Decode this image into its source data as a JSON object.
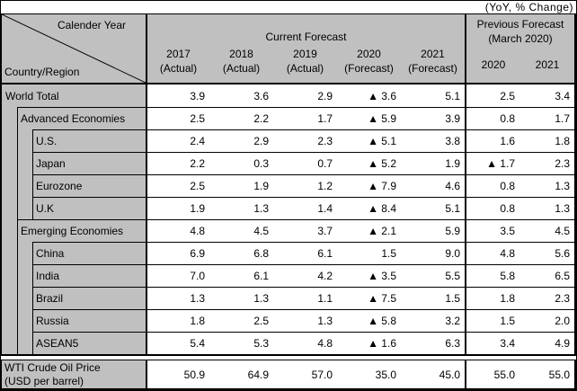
{
  "caption": "(YoY, % Change)",
  "colors": {
    "header_bg": "#c0c0c0",
    "border": "#000000",
    "background": "#ffffff",
    "text": "#000000"
  },
  "negative_marker": "▲",
  "header": {
    "corner_top": "Calender Year",
    "corner_bottom": "Country/Region",
    "current": {
      "title": "Current Forecast",
      "years": [
        {
          "year": "2017",
          "status": "(Actual)"
        },
        {
          "year": "2018",
          "status": "(Actual)"
        },
        {
          "year": "2019",
          "status": "(Actual)"
        },
        {
          "year": "2020",
          "status": "(Forecast)"
        },
        {
          "year": "2021",
          "status": "(Forecast)"
        }
      ]
    },
    "previous": {
      "title": "Previous Forecast",
      "subtitle": "(March 2020)",
      "years": [
        "2020",
        "2021"
      ]
    }
  },
  "rows": [
    {
      "label": "World Total",
      "indent": 0,
      "values": [
        "3.9",
        "3.6",
        "2.9",
        "▲ 3.6",
        "5.1",
        "2.5",
        "3.4"
      ]
    },
    {
      "label": "Advanced Economies",
      "indent": 1,
      "values": [
        "2.5",
        "2.2",
        "1.7",
        "▲ 5.9",
        "3.9",
        "0.8",
        "1.7"
      ]
    },
    {
      "label": "U.S.",
      "indent": 2,
      "values": [
        "2.4",
        "2.9",
        "2.3",
        "▲ 5.1",
        "3.8",
        "1.6",
        "1.8"
      ]
    },
    {
      "label": "Japan",
      "indent": 2,
      "values": [
        "2.2",
        "0.3",
        "0.7",
        "▲ 5.2",
        "1.9",
        "▲ 1.7",
        "2.3"
      ]
    },
    {
      "label": "Eurozone",
      "indent": 2,
      "values": [
        "2.5",
        "1.9",
        "1.2",
        "▲ 7.9",
        "4.6",
        "0.8",
        "1.3"
      ]
    },
    {
      "label": "U.K",
      "indent": 2,
      "values": [
        "1.9",
        "1.3",
        "1.4",
        "▲ 8.4",
        "5.1",
        "0.8",
        "1.3"
      ]
    },
    {
      "label": "Emerging Economies",
      "indent": 1,
      "values": [
        "4.8",
        "4.5",
        "3.7",
        "▲ 2.1",
        "5.9",
        "3.5",
        "4.5"
      ]
    },
    {
      "label": "China",
      "indent": 2,
      "values": [
        "6.9",
        "6.8",
        "6.1",
        "1.5",
        "9.0",
        "4.8",
        "5.6"
      ]
    },
    {
      "label": "India",
      "indent": 2,
      "values": [
        "7.0",
        "6.1",
        "4.2",
        "▲ 3.5",
        "5.5",
        "5.8",
        "6.5"
      ]
    },
    {
      "label": "Brazil",
      "indent": 2,
      "values": [
        "1.3",
        "1.3",
        "1.1",
        "▲ 7.5",
        "1.5",
        "1.8",
        "2.3"
      ]
    },
    {
      "label": "Russia",
      "indent": 2,
      "values": [
        "1.8",
        "2.5",
        "1.3",
        "▲ 5.8",
        "3.2",
        "1.5",
        "2.0"
      ]
    },
    {
      "label": "ASEAN5",
      "indent": 2,
      "values": [
        "5.4",
        "5.3",
        "4.8",
        "▲ 1.6",
        "6.3",
        "3.4",
        "4.9"
      ]
    }
  ],
  "footer_row": {
    "label_line1": "WTI Crude Oil Price",
    "label_line2": "(USD per barrel)",
    "values": [
      "50.9",
      "64.9",
      "57.0",
      "35.0",
      "45.0",
      "55.0",
      "55.0"
    ]
  }
}
